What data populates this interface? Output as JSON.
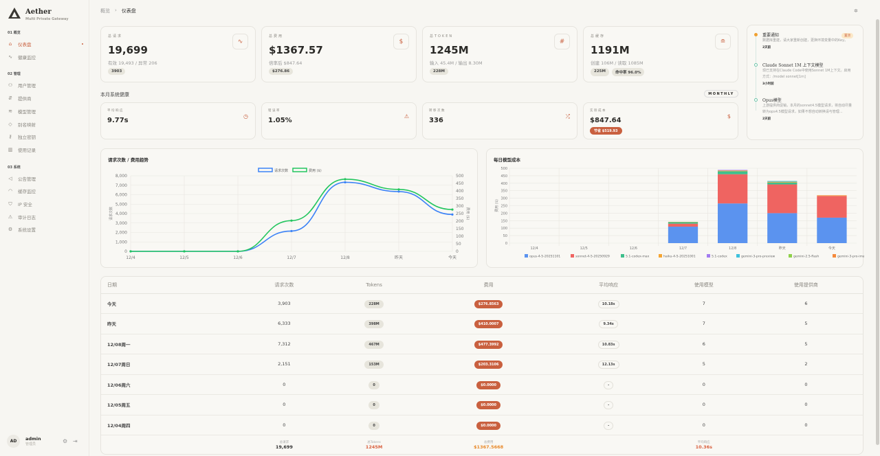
{
  "brand": {
    "title": "Aether",
    "subtitle": "Multi Private Gateway"
  },
  "sidebar": {
    "sections": [
      {
        "label": "01 概览",
        "items": [
          {
            "label": "仪表盘",
            "icon": "home-icon",
            "active": true
          },
          {
            "label": "健康监控",
            "icon": "activity-icon"
          }
        ]
      },
      {
        "label": "02 管理",
        "items": [
          {
            "label": "用户管理",
            "icon": "users-icon"
          },
          {
            "label": "提供商",
            "icon": "provider-icon"
          },
          {
            "label": "模型管理",
            "icon": "layers-icon"
          },
          {
            "label": "别名映射",
            "icon": "tag-icon"
          },
          {
            "label": "独立密钥",
            "icon": "key-icon"
          },
          {
            "label": "使用记录",
            "icon": "bar-chart-icon"
          }
        ]
      },
      {
        "label": "03 系统",
        "items": [
          {
            "label": "公告管理",
            "icon": "megaphone-icon"
          },
          {
            "label": "缓存监控",
            "icon": "gauge-icon"
          },
          {
            "label": "IP 安全",
            "icon": "shield-icon"
          },
          {
            "label": "审计日志",
            "icon": "warning-icon"
          },
          {
            "label": "系统设置",
            "icon": "settings-icon"
          }
        ]
      }
    ],
    "user": {
      "initials": "AD",
      "name": "admin",
      "role": "管理员"
    }
  },
  "breadcrumb": [
    "概览",
    "仪表盘"
  ],
  "kpis": [
    {
      "label": "总请求",
      "value": "19,699",
      "sub": "有效 19,493 / 异常 206",
      "pills": [
        "3903"
      ],
      "icon": "activity-icon"
    },
    {
      "label": "总费用",
      "value": "$1367.57",
      "sub": "倍率后 $847.64",
      "pills": [
        "$276.86"
      ],
      "icon": "dollar-icon"
    },
    {
      "label": "总TOKEN",
      "value": "1245M",
      "sub": "输入 45.4M / 输出 8.30M",
      "pills": [
        "228M"
      ],
      "icon": "hash-icon"
    },
    {
      "label": "总缓存",
      "value": "1191M",
      "sub": "创建 106M / 读取 1085M",
      "pills": [
        "225M",
        "命中率 96.0%"
      ],
      "icon": "database-icon"
    }
  ],
  "health": {
    "title": "本月系统健康",
    "period": "MONTHLY",
    "cards": [
      {
        "label": "平均响应",
        "value": "9.77s",
        "icon": "clock-icon"
      },
      {
        "label": "错误率",
        "value": "1.05%",
        "icon": "warning-icon"
      },
      {
        "label": "转移次数",
        "value": "336",
        "icon": "shuffle-icon"
      },
      {
        "label": "实际成本",
        "value": "$847.64",
        "icon": "dollar-icon",
        "badge": "节省 $519.93"
      }
    ]
  },
  "notices": [
    {
      "title": "重要通知",
      "text": "数据库重建，请大家重新创建，更换环境变量中的Key。",
      "time": "2天前",
      "badge": "置顶",
      "color": "#f0a030"
    },
    {
      "title": "Claude Sonnet 1M 上下文模型",
      "text": "现已支持在Claude Code中使用Sonnet 1M上下文。启用方式：/model sonnet[1m]",
      "time": "3小时前",
      "color": "#6cc4a8"
    },
    {
      "title": "Opus模型",
      "text": "上游提供商促销，本月的sonnet4.5模型请求，将自动尽量转为ops4.5模型请求，如果不想自动转换请与管理...",
      "time": "2天前",
      "color": "#6cc4a8"
    }
  ],
  "chart_data": [
    {
      "type": "line",
      "title": "请求次数 / 费用趋势",
      "categories": [
        "12/4",
        "12/5",
        "12/6",
        "12/7",
        "12/8",
        "昨天",
        "今天"
      ],
      "ylabel": "请求次数",
      "y2label": "费用 ($)",
      "ylim": [
        0,
        8000
      ],
      "y2lim": [
        0,
        500
      ],
      "yticks": [
        "0",
        "1,000",
        "2,000",
        "3,000",
        "4,000",
        "5,000",
        "6,000",
        "7,000",
        "8,000"
      ],
      "y2ticks": [
        "0",
        "50",
        "100",
        "150",
        "200",
        "250",
        "300",
        "350",
        "400",
        "450",
        "500"
      ],
      "legend": "top",
      "grid": true,
      "series": [
        {
          "name": "请求次数",
          "axis": "left",
          "color": "#3b82f6",
          "values": [
            0,
            0,
            0,
            2151,
            7312,
            6333,
            3903
          ]
        },
        {
          "name": "费用 ($)",
          "axis": "right",
          "color": "#22c55e",
          "values": [
            0,
            0,
            0,
            203.31,
            477.4,
            410.0,
            276.86
          ]
        }
      ]
    },
    {
      "type": "bar",
      "stacked": true,
      "title": "每日模型成本",
      "categories": [
        "12/4",
        "12/5",
        "12/6",
        "12/7",
        "12/8",
        "昨天",
        "今天"
      ],
      "ylabel": "费用 ($)",
      "ylim": [
        0,
        500
      ],
      "yticks": [
        "0",
        "50",
        "100",
        "150",
        "200",
        "250",
        "300",
        "350",
        "400",
        "450",
        "500"
      ],
      "legend": "bottom",
      "grid": true,
      "series": [
        {
          "name": "opus-4-5-20251101",
          "color": "#5b93ef",
          "values": [
            0,
            0,
            0,
            110,
            265,
            200,
            170
          ]
        },
        {
          "name": "sonnet-4-5-20250929",
          "color": "#ef6461",
          "values": [
            0,
            0,
            0,
            20,
            195,
            192,
            145
          ]
        },
        {
          "name": "5.1-codex-max",
          "color": "#3ebf8c",
          "values": [
            0,
            0,
            0,
            10,
            20,
            13,
            0
          ]
        },
        {
          "name": "haiku-4-5-20251001",
          "color": "#f5a533",
          "values": [
            0,
            0,
            0,
            2,
            5,
            5,
            3
          ]
        },
        {
          "name": "5.1-codex",
          "color": "#a37cf0",
          "values": [
            0,
            0,
            0,
            0,
            4,
            0,
            0
          ]
        },
        {
          "name": "gemini-3-pro-preview",
          "color": "#3ec1dc",
          "values": [
            0,
            0,
            0,
            0,
            0,
            5,
            0
          ]
        },
        {
          "name": "gemini-2.5-flash",
          "color": "#8fd14a",
          "values": [
            0,
            0,
            0,
            0,
            0,
            0,
            0
          ]
        },
        {
          "name": "gemini-3-pro-image-preview",
          "color": "#f58a3c",
          "values": [
            0,
            0,
            0,
            0,
            0,
            0,
            2
          ]
        }
      ]
    }
  ],
  "table": {
    "headers": [
      "日期",
      "请求次数",
      "Tokens",
      "费用",
      "平均响应",
      "使用模型",
      "使用提供商"
    ],
    "rows": [
      [
        "今天",
        "3,903",
        "228M",
        "$276.8563",
        "10.18s",
        "7",
        "6"
      ],
      [
        "昨天",
        "6,333",
        "398M",
        "$410.0007",
        "9.34s",
        "7",
        "5"
      ],
      [
        "12/08周一",
        "7,312",
        "467M",
        "$477.3992",
        "10.83s",
        "6",
        "5"
      ],
      [
        "12/07周日",
        "2,151",
        "153M",
        "$203.3106",
        "12.13s",
        "5",
        "2"
      ],
      [
        "12/06周六",
        "0",
        "0",
        "$0.0000",
        "-",
        "0",
        "0"
      ],
      [
        "12/05周五",
        "0",
        "0",
        "$0.0000",
        "-",
        "0",
        "0"
      ],
      [
        "12/04周四",
        "0",
        "0",
        "$0.0000",
        "-",
        "0",
        "0"
      ]
    ],
    "footer": [
      {
        "label": "总请求",
        "value": "19,699"
      },
      {
        "label": "总Tokens",
        "value": "1245M",
        "color": "#d9603f"
      },
      {
        "label": "总费用",
        "value": "$1367.5668",
        "color": "#e8892a"
      },
      {
        "label": "平均响应",
        "value": "10.36s",
        "color": "#d9603f"
      }
    ]
  },
  "colors": {
    "accent": "#c9603f"
  }
}
